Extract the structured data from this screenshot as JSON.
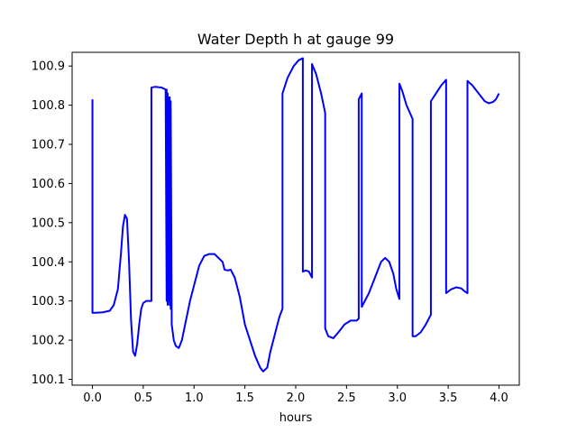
{
  "chart_data": {
    "type": "line",
    "title": "Water Depth h at gauge 99",
    "xlabel": "hours",
    "ylabel": "",
    "xlim": [
      -0.2,
      4.2
    ],
    "ylim": [
      100.085,
      100.935
    ],
    "xticks": [
      0.0,
      0.5,
      1.0,
      1.5,
      2.0,
      2.5,
      3.0,
      3.5,
      4.0
    ],
    "xtick_labels": [
      "0.0",
      "0.5",
      "1.0",
      "1.5",
      "2.0",
      "2.5",
      "3.0",
      "3.5",
      "4.0"
    ],
    "yticks": [
      100.1,
      100.2,
      100.3,
      100.4,
      100.5,
      100.6,
      100.7,
      100.8,
      100.9
    ],
    "ytick_labels": [
      "100.1",
      "100.2",
      "100.3",
      "100.4",
      "100.5",
      "100.6",
      "100.7",
      "100.8",
      "100.9"
    ],
    "grid": false,
    "legend": false,
    "series": [
      {
        "color": "#0000ff",
        "x": [
          0.0,
          0.0,
          0.03,
          0.1,
          0.17,
          0.21,
          0.25,
          0.28,
          0.3,
          0.32,
          0.34,
          0.36,
          0.38,
          0.4,
          0.42,
          0.44,
          0.46,
          0.48,
          0.5,
          0.53,
          0.56,
          0.58,
          0.58,
          0.62,
          0.68,
          0.72,
          0.73,
          0.73,
          0.74,
          0.74,
          0.75,
          0.75,
          0.76,
          0.76,
          0.77,
          0.77,
          0.78,
          0.8,
          0.82,
          0.85,
          0.88,
          0.92,
          0.96,
          1.0,
          1.05,
          1.1,
          1.15,
          1.2,
          1.28,
          1.3,
          1.33,
          1.36,
          1.4,
          1.45,
          1.5,
          1.55,
          1.6,
          1.65,
          1.68,
          1.72,
          1.75,
          1.8,
          1.84,
          1.87,
          1.87,
          1.92,
          1.98,
          2.03,
          2.07,
          2.07,
          2.1,
          2.13,
          2.16,
          2.16,
          2.2,
          2.25,
          2.29,
          2.29,
          2.32,
          2.37,
          2.42,
          2.48,
          2.54,
          2.6,
          2.62,
          2.62,
          2.65,
          2.65,
          2.72,
          2.78,
          2.84,
          2.88,
          2.92,
          2.96,
          2.99,
          3.02,
          3.02,
          3.05,
          3.09,
          3.15,
          3.15,
          3.18,
          3.23,
          3.28,
          3.33,
          3.33,
          3.38,
          3.43,
          3.48,
          3.48,
          3.53,
          3.58,
          3.63,
          3.66,
          3.69,
          3.69,
          3.74,
          3.8,
          3.86,
          3.9,
          3.94,
          3.97,
          4.0
        ],
        "y": [
          100.815,
          100.27,
          100.27,
          100.271,
          100.275,
          100.29,
          100.33,
          100.42,
          100.49,
          100.52,
          100.51,
          100.4,
          100.25,
          100.17,
          100.16,
          100.19,
          100.24,
          100.28,
          100.295,
          100.3,
          100.3,
          100.3,
          100.845,
          100.847,
          100.845,
          100.84,
          100.3,
          100.84,
          100.29,
          100.83,
          100.3,
          100.82,
          100.29,
          100.82,
          100.28,
          100.81,
          100.24,
          100.2,
          100.185,
          100.18,
          100.2,
          100.25,
          100.3,
          100.34,
          100.39,
          100.415,
          100.42,
          100.42,
          100.4,
          100.38,
          100.378,
          100.38,
          100.36,
          100.31,
          100.24,
          100.2,
          100.16,
          100.13,
          100.12,
          100.13,
          100.17,
          100.22,
          100.26,
          100.28,
          100.83,
          100.87,
          100.9,
          100.915,
          100.92,
          100.375,
          100.378,
          100.375,
          100.36,
          100.905,
          100.88,
          100.83,
          100.78,
          100.23,
          100.21,
          100.205,
          100.22,
          100.24,
          100.25,
          100.25,
          100.255,
          100.815,
          100.83,
          100.285,
          100.32,
          100.36,
          100.4,
          100.41,
          100.4,
          100.37,
          100.33,
          100.305,
          100.855,
          100.835,
          100.8,
          100.765,
          100.21,
          100.21,
          100.22,
          100.24,
          100.265,
          100.81,
          100.83,
          100.85,
          100.865,
          100.32,
          100.33,
          100.335,
          100.332,
          100.325,
          100.32,
          100.862,
          100.85,
          100.83,
          100.81,
          100.805,
          100.808,
          100.815,
          100.83
        ]
      }
    ]
  }
}
